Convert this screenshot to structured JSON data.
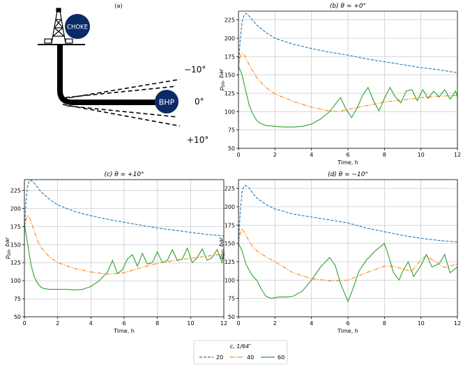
{
  "colors": {
    "s20": "#1f77b4",
    "s40": "#ff7f0e",
    "s60": "#2ca02c"
  },
  "schematic": {
    "panel_label": "(a)",
    "choke_label": "CHOKE",
    "bhp_label": "BHP",
    "angle_minus": "−10°",
    "angle_zero": "0°",
    "angle_plus": "+10°"
  },
  "legend": {
    "title": "c, 1/64″",
    "items": [
      {
        "label": "20",
        "style": "dashed",
        "color": "#1f77b4"
      },
      {
        "label": "40",
        "style": "dashdot",
        "color": "#ff7f0e"
      },
      {
        "label": "60",
        "style": "solid",
        "color": "#2ca02c"
      }
    ]
  },
  "chart_data": [
    {
      "id": "b",
      "type": "line",
      "title": "(b) θ = +0°",
      "xlabel": "Time, h",
      "ylabel": "p_bh, bar",
      "xlim": [
        0,
        12
      ],
      "ylim": [
        50,
        237
      ],
      "xticks": [
        0,
        2,
        4,
        6,
        8,
        10,
        12
      ],
      "yticks": [
        50,
        75,
        100,
        125,
        150,
        175,
        200,
        225
      ],
      "grid": true,
      "series": [
        {
          "name": "20",
          "style": "dashed",
          "x": [
            0,
            0.1,
            0.2,
            0.3,
            0.4,
            0.6,
            0.8,
            1,
            1.5,
            2,
            3,
            4,
            5,
            6,
            7,
            8,
            9,
            10,
            11,
            12
          ],
          "y": [
            160,
            200,
            222,
            231,
            234,
            230,
            224,
            218,
            208,
            200,
            192,
            186,
            181,
            177,
            172,
            168,
            164,
            160,
            157,
            153
          ]
        },
        {
          "name": "40",
          "style": "dashdot",
          "x": [
            0,
            0.1,
            0.2,
            0.3,
            0.5,
            0.8,
            1,
            1.5,
            2,
            3,
            4,
            5,
            5.5,
            6,
            7,
            8,
            9,
            10,
            11,
            12
          ],
          "y": [
            162,
            175,
            180,
            178,
            168,
            155,
            146,
            133,
            124,
            114,
            106,
            101,
            100,
            103,
            108,
            113,
            116,
            119,
            121,
            122
          ]
        },
        {
          "name": "60",
          "style": "solid",
          "x": [
            0,
            0.2,
            0.4,
            0.6,
            0.8,
            1,
            1.2,
            1.5,
            2,
            2.5,
            3,
            3.5,
            4,
            4.5,
            5,
            5.3,
            5.6,
            5.9,
            6.2,
            6.5,
            6.8,
            7.1,
            7.4,
            7.7,
            8.0,
            8.3,
            8.6,
            8.9,
            9.2,
            9.5,
            9.8,
            10.1,
            10.4,
            10.7,
            11,
            11.3,
            11.6,
            11.9,
            12
          ],
          "y": [
            162,
            150,
            128,
            108,
            96,
            88,
            84,
            81,
            80,
            79,
            79,
            80,
            83,
            90,
            100,
            110,
            119,
            103,
            92,
            105,
            122,
            133,
            115,
            101,
            118,
            133,
            120,
            112,
            128,
            130,
            115,
            130,
            118,
            128,
            120,
            130,
            117,
            128,
            120
          ]
        }
      ]
    },
    {
      "id": "c",
      "type": "line",
      "title": "(c) θ = +10°",
      "xlabel": "Time, h",
      "ylabel": "p_bh, bar",
      "xlim": [
        0,
        12
      ],
      "ylim": [
        50,
        240
      ],
      "xticks": [
        0,
        2,
        4,
        6,
        8,
        10,
        12
      ],
      "yticks": [
        50,
        75,
        100,
        125,
        150,
        175,
        200,
        225
      ],
      "grid": true,
      "series": [
        {
          "name": "20",
          "style": "dashed",
          "x": [
            0,
            0.1,
            0.2,
            0.3,
            0.4,
            0.6,
            0.8,
            1,
            1.5,
            2,
            3,
            4,
            5,
            6,
            7,
            8,
            9,
            10,
            11,
            12
          ],
          "y": [
            165,
            212,
            232,
            238,
            239,
            235,
            229,
            223,
            213,
            205,
            196,
            190,
            185,
            181,
            177,
            173,
            170,
            167,
            164,
            162
          ]
        },
        {
          "name": "40",
          "style": "dashdot",
          "x": [
            0,
            0.1,
            0.2,
            0.3,
            0.5,
            0.8,
            1,
            1.5,
            2,
            3,
            4,
            5,
            6,
            7,
            8,
            9,
            10,
            11,
            12
          ],
          "y": [
            172,
            185,
            190,
            188,
            175,
            155,
            146,
            133,
            125,
            117,
            112,
            109,
            111,
            118,
            124,
            128,
            131,
            134,
            137
          ]
        },
        {
          "name": "60",
          "style": "solid",
          "x": [
            0,
            0.2,
            0.4,
            0.6,
            0.8,
            1,
            1.2,
            1.5,
            2,
            2.5,
            3,
            3.5,
            4,
            4.5,
            5,
            5.3,
            5.6,
            5.9,
            6.2,
            6.5,
            6.8,
            7.1,
            7.4,
            7.7,
            8.0,
            8.3,
            8.6,
            8.9,
            9.2,
            9.5,
            9.8,
            10.1,
            10.4,
            10.7,
            11,
            11.3,
            11.6,
            11.9,
            12
          ],
          "y": [
            178,
            150,
            122,
            105,
            96,
            91,
            89,
            88,
            88,
            88,
            87,
            88,
            92,
            100,
            112,
            128,
            110,
            115,
            130,
            136,
            120,
            138,
            123,
            125,
            140,
            125,
            128,
            143,
            128,
            130,
            145,
            125,
            132,
            144,
            128,
            132,
            143,
            125,
            138
          ]
        }
      ]
    },
    {
      "id": "d",
      "type": "line",
      "title": "(d) θ = −10°",
      "xlabel": "Time, h",
      "ylabel": "p_bh, bar",
      "xlim": [
        0,
        12
      ],
      "ylim": [
        50,
        237
      ],
      "xticks": [
        0,
        2,
        4,
        6,
        8,
        10,
        12
      ],
      "yticks": [
        50,
        75,
        100,
        125,
        150,
        175,
        200,
        225
      ],
      "grid": true,
      "series": [
        {
          "name": "20",
          "style": "dashed",
          "x": [
            0,
            0.1,
            0.2,
            0.3,
            0.4,
            0.6,
            0.8,
            1,
            1.5,
            2,
            3,
            4,
            5,
            6,
            7,
            8,
            9,
            10,
            11,
            12
          ],
          "y": [
            150,
            195,
            220,
            228,
            229,
            225,
            218,
            212,
            203,
            197,
            190,
            186,
            182,
            178,
            171,
            166,
            161,
            157,
            154,
            152
          ]
        },
        {
          "name": "40",
          "style": "dashdot",
          "x": [
            0,
            0.1,
            0.2,
            0.4,
            0.6,
            0.8,
            1,
            1.5,
            2,
            3,
            4,
            5,
            6,
            7,
            8,
            8.5,
            9,
            9.5,
            10,
            10.3,
            10.8,
            11.3,
            12
          ],
          "y": [
            150,
            165,
            170,
            162,
            152,
            145,
            140,
            132,
            125,
            110,
            102,
            99,
            100,
            110,
            119,
            119,
            115,
            112,
            128,
            133,
            125,
            117,
            122
          ]
        },
        {
          "name": "60",
          "style": "solid",
          "x": [
            0,
            0.2,
            0.4,
            0.6,
            0.8,
            1,
            1.2,
            1.5,
            1.8,
            2.2,
            2.6,
            3,
            3.5,
            4,
            4.5,
            5,
            5.3,
            5.6,
            6,
            6.3,
            6.6,
            7,
            7.5,
            8,
            8.2,
            8.5,
            8.8,
            9,
            9.3,
            9.6,
            10,
            10.3,
            10.6,
            11,
            11.3,
            11.6,
            12
          ],
          "y": [
            150,
            140,
            122,
            113,
            105,
            100,
            90,
            78,
            75,
            77,
            77,
            78,
            85,
            100,
            118,
            131,
            120,
            95,
            71,
            90,
            112,
            127,
            140,
            150,
            135,
            110,
            100,
            112,
            125,
            105,
            120,
            135,
            118,
            122,
            135,
            110,
            118
          ]
        }
      ]
    }
  ]
}
